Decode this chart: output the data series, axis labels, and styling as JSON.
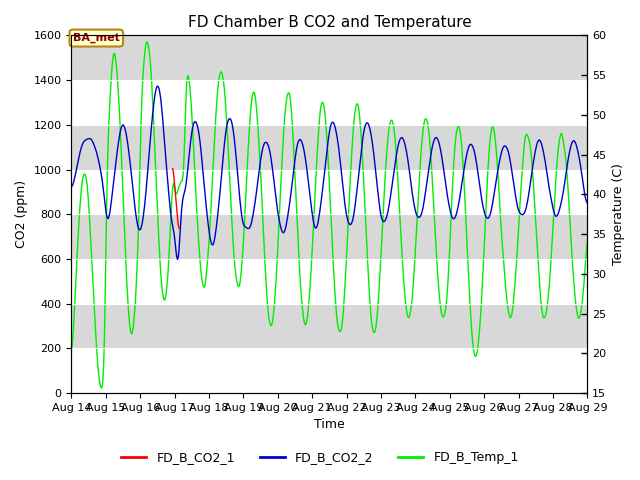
{
  "title": "FD Chamber B CO2 and Temperature",
  "xlabel": "Time",
  "ylabel_left": "CO2 (ppm)",
  "ylabel_right": "Temperature (C)",
  "ylim_left": [
    0,
    1600
  ],
  "ylim_right": [
    15,
    60
  ],
  "yticks_left": [
    0,
    200,
    400,
    600,
    800,
    1000,
    1200,
    1400,
    1600
  ],
  "yticks_right": [
    15,
    20,
    25,
    30,
    35,
    40,
    45,
    50,
    55,
    60
  ],
  "xtick_labels": [
    "Aug 14",
    "Aug 15",
    "Aug 16",
    "Aug 17",
    "Aug 18",
    "Aug 19",
    "Aug 20",
    "Aug 21",
    "Aug 22",
    "Aug 23",
    "Aug 24",
    "Aug 25",
    "Aug 26",
    "Aug 27",
    "Aug 28",
    "Aug 29"
  ],
  "color_co2_1": "#ff0000",
  "color_co2_2": "#0000cc",
  "color_temp": "#00ee00",
  "bg_color": "#d8d8d8",
  "annotation_text": "BA_met",
  "legend_items": [
    "FD_B_CO2_1",
    "FD_B_CO2_2",
    "FD_B_Temp_1"
  ],
  "grid_color": "white",
  "title_fontsize": 11,
  "axis_fontsize": 9,
  "tick_fontsize": 8
}
